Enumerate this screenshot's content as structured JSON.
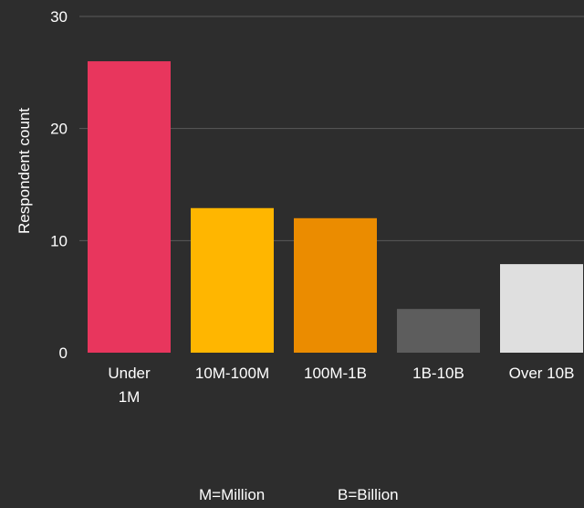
{
  "chart_data": {
    "type": "bar",
    "categories": [
      [
        "Under",
        "1M"
      ],
      [
        "10M-100M"
      ],
      [
        "100M-1B"
      ],
      [
        "1B-10B"
      ],
      [
        "Over 10B"
      ]
    ],
    "values": [
      26,
      12.9,
      12,
      3.9,
      7.9
    ],
    "colors": [
      "#e8365d",
      "#ffb600",
      "#eb8c00",
      "#5d5d5d",
      "#dfdfdf"
    ],
    "ylabel": "Respondent count",
    "xlabel": "",
    "ylim": [
      0,
      30
    ],
    "yticks": [
      0,
      10,
      20,
      30
    ],
    "grid": true,
    "background": "#2d2d2d",
    "gridline_color": "#5a5a5a"
  },
  "notes": {
    "million": "M=Million",
    "billion": "B=Billion"
  }
}
